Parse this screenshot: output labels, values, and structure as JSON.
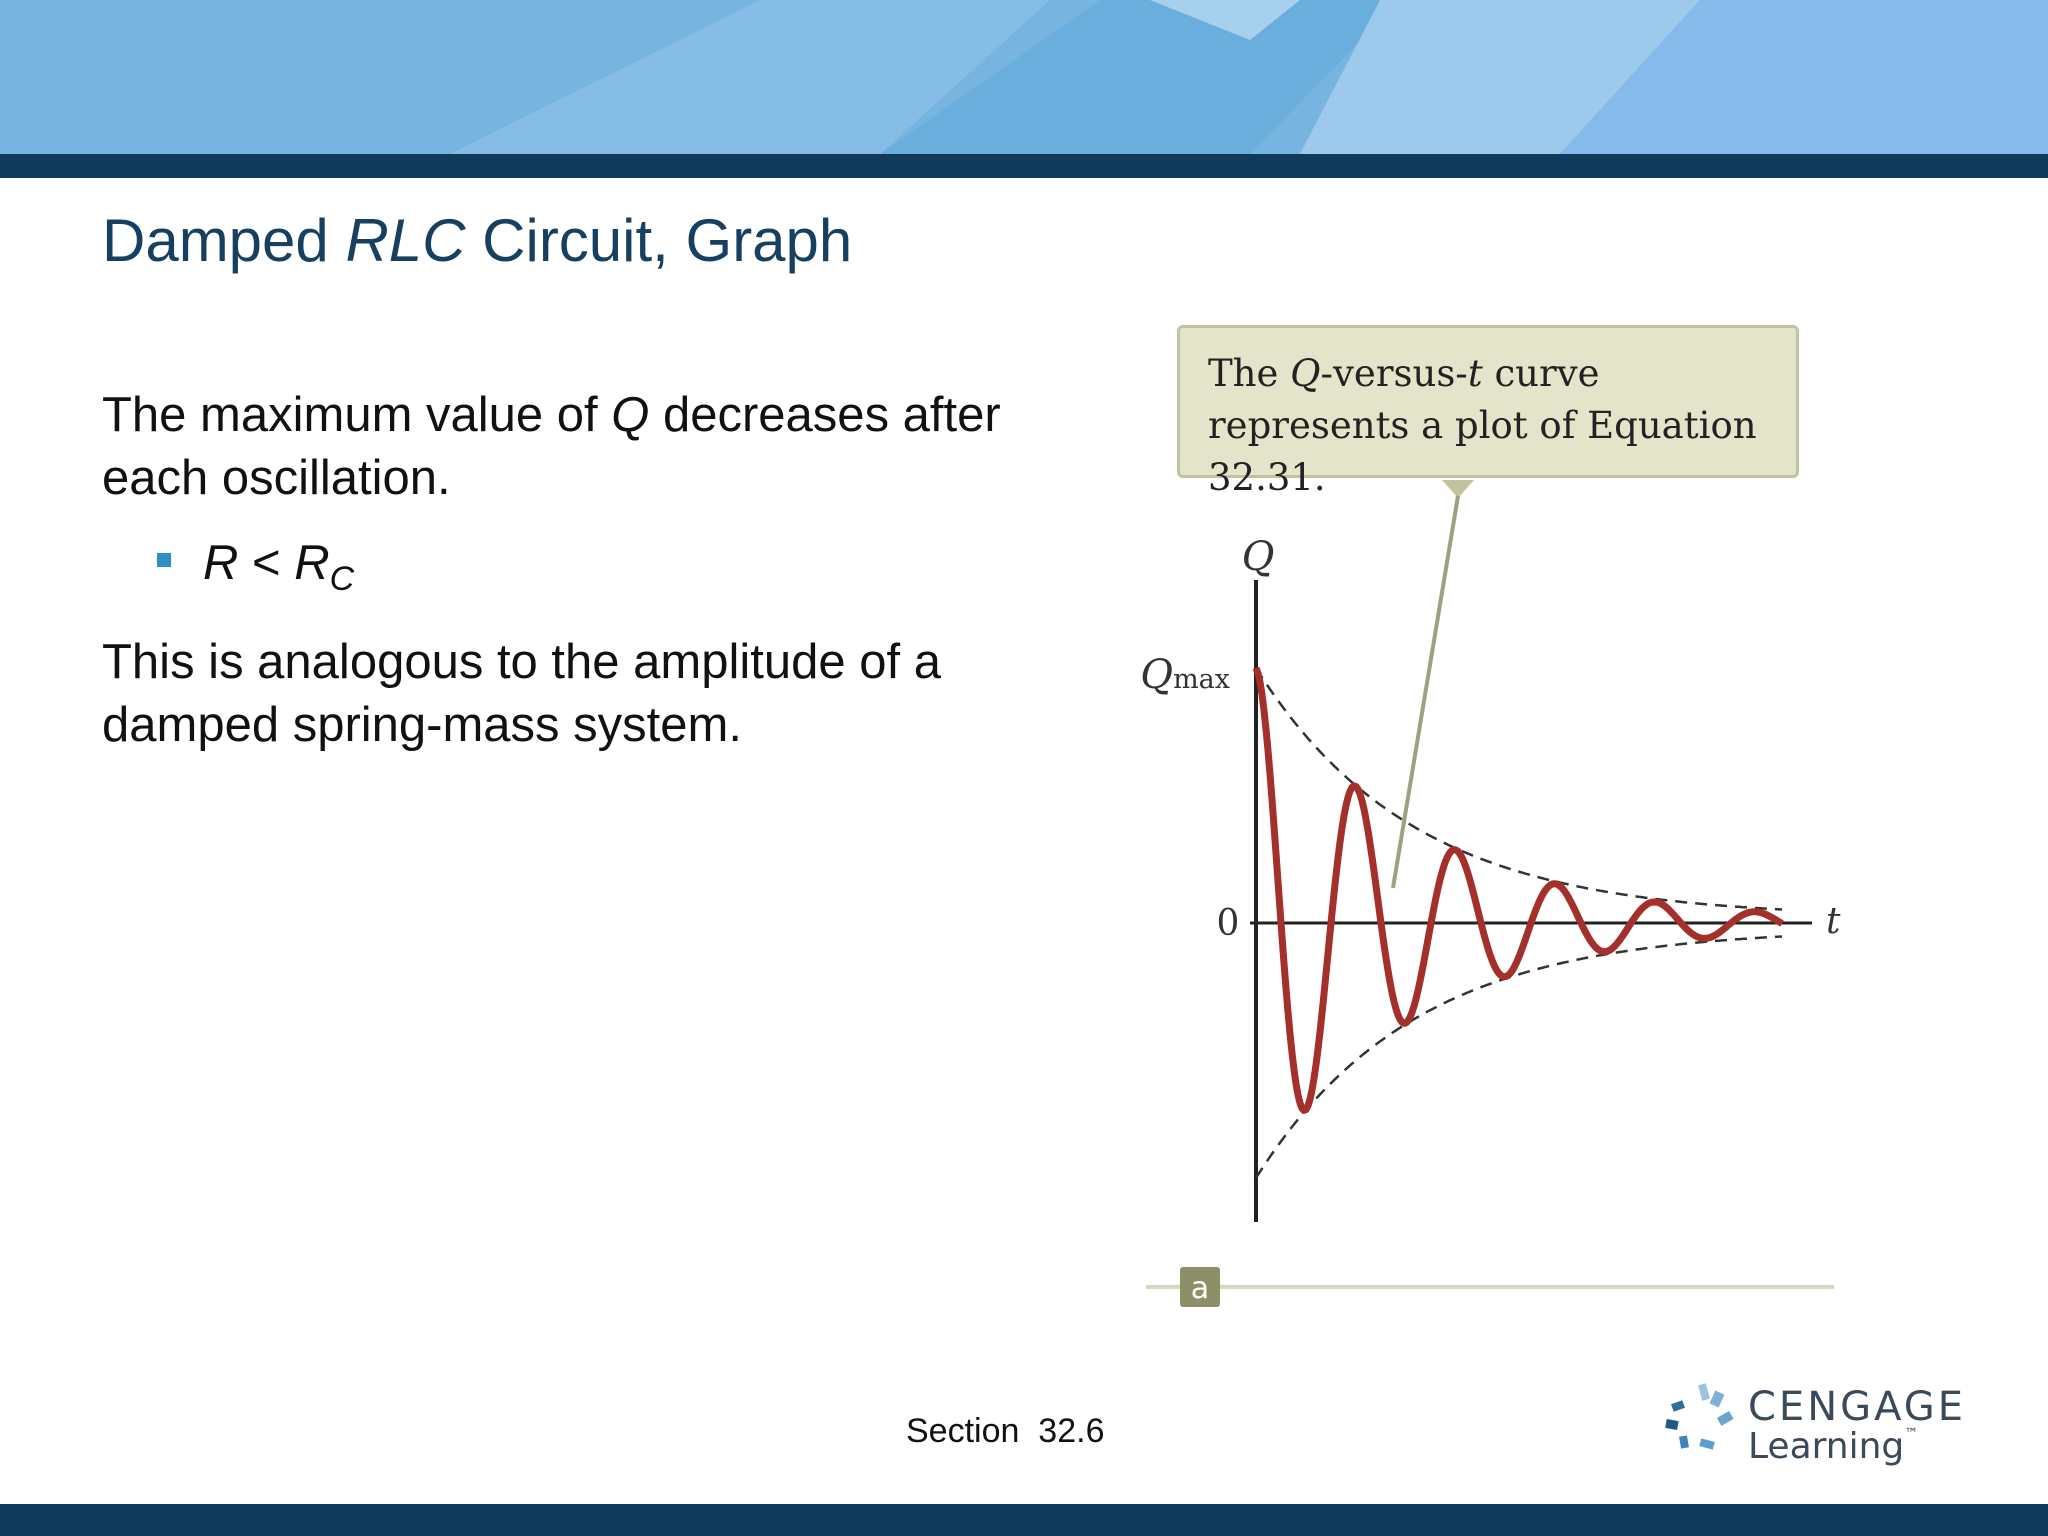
{
  "slide": {
    "title_part1": "Damped ",
    "title_italic": "RLC",
    "title_part2": " Circuit, Graph",
    "para1_a": "The maximum value of ",
    "para1_italic": "Q",
    "para1_b": " decreases after each oscillation.",
    "bullet_R": "R",
    "bullet_op": " < ",
    "bullet_RC": "R",
    "bullet_sub": "C",
    "para2": "This is analogous to the amplitude of a damped spring-mass system.",
    "section": "Section  32.6"
  },
  "callout": {
    "text1": "The ",
    "italic1": "Q",
    "text2": "-versus-",
    "italic2": "t",
    "text3": " curve represents a plot of Equation 32.31."
  },
  "figure": {
    "y_axis_label": "Q",
    "x_axis_label": "t",
    "qmax_label_main": "Q",
    "qmax_label_sub": "max",
    "zero_label": "0",
    "panel_label": "a",
    "curve_color": "#a3302a",
    "envelope": "dashed"
  },
  "logo": {
    "word": "CENGAGE",
    "sub": "Learning",
    "tm": "™"
  }
}
